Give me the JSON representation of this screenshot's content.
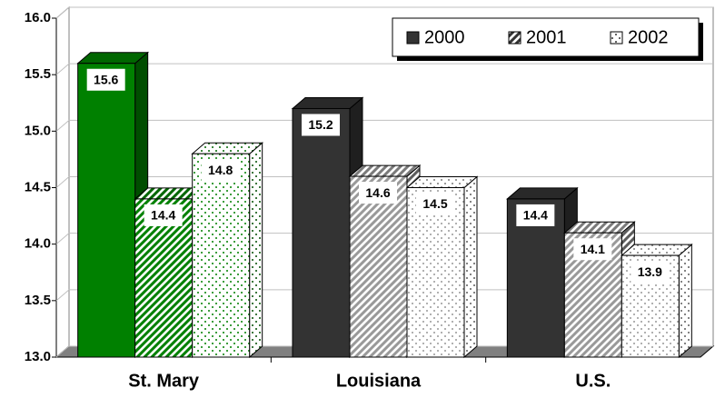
{
  "chart_data": {
    "type": "bar3d",
    "categories": [
      "St. Mary",
      "Louisiana",
      "U.S."
    ],
    "series": [
      {
        "name": "2000",
        "pattern": "solid",
        "color": "#333333",
        "colors": [
          "#008000",
          "#333333",
          "#333333"
        ],
        "values": [
          15.6,
          15.2,
          14.4
        ]
      },
      {
        "name": "2001",
        "pattern": "stripes",
        "color": "#333333",
        "colors": [
          "#008000",
          "#999999",
          "#999999"
        ],
        "values": [
          14.4,
          14.6,
          14.1
        ]
      },
      {
        "name": "2002",
        "pattern": "dots",
        "color": "#333333",
        "colors": [
          "#008000",
          "#999999",
          "#999999"
        ],
        "values": [
          14.8,
          14.5,
          13.9
        ]
      }
    ],
    "ylim": [
      13,
      16
    ],
    "yticks": [
      {
        "value": 13,
        "label": "13.0"
      },
      13.5,
      {
        "value": 14,
        "label": "14.0"
      },
      14.5,
      {
        "value": 15,
        "label": "15.0"
      },
      15.5,
      {
        "value": 16,
        "label": "16.0"
      }
    ],
    "grid": true,
    "legend": "top-right"
  }
}
